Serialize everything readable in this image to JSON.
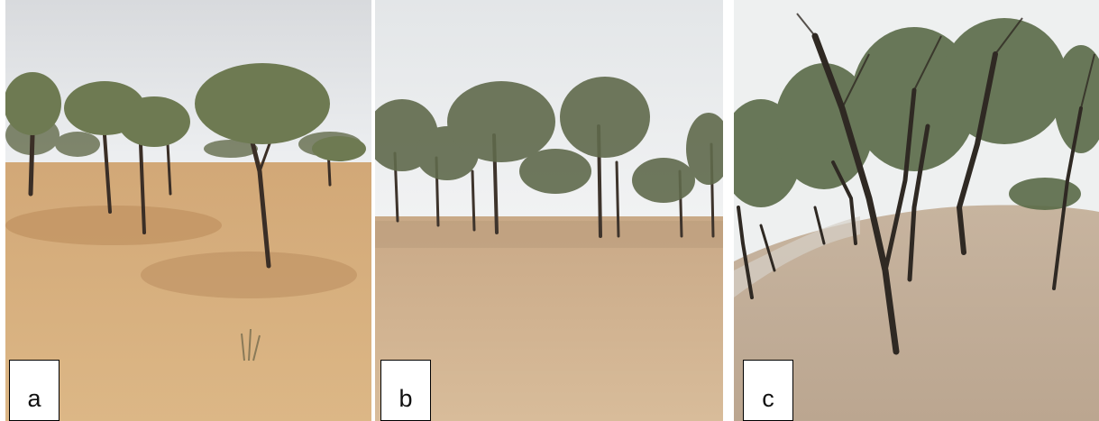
{
  "panels": [
    {
      "label": "a",
      "scene": "sparse-acacia-savanna-photo"
    },
    {
      "label": "b",
      "scene": "acacia-woodland-photo"
    },
    {
      "label": "c",
      "scene": "acacia-slope-photo"
    }
  ],
  "colors": {
    "sky": "#e6e8ea",
    "sand_a": "#d9b07f",
    "sand_b": "#d6b896",
    "sand_c": "#c2ae98",
    "tree_trunk": "#3a2e26",
    "foliage": "#5c6e4a",
    "label_bg": "#ffffff",
    "label_border": "#000000"
  }
}
